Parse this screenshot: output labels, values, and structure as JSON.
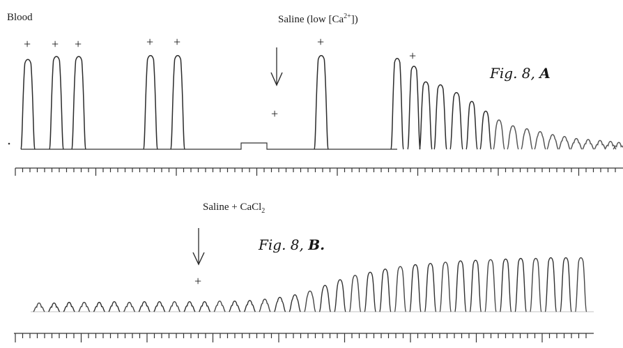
{
  "labels": {
    "blood": "Blood",
    "saline_low_ca_text": "Saline (low [Ca",
    "saline_low_ca_sup": "2+",
    "saline_low_ca_close": "])",
    "saline_cacl2_text": "Saline + CaCl",
    "saline_cacl2_sub": "2"
  },
  "figures": {
    "a_prefix": "Fig. 8, ",
    "a_letter": "A",
    "b_prefix": "Fig. 8, ",
    "b_letter": "B."
  },
  "marks": {
    "plus": "+"
  },
  "traces": {
    "a": {
      "beat_heights": [
        0.92,
        0.95,
        0.95,
        0.96,
        0.96,
        0.05,
        0.96,
        0.93,
        0.85,
        0.69,
        0.66,
        0.58,
        0.49,
        0.39,
        0.3,
        0.24,
        0.21,
        0.18,
        0.15,
        0.13,
        0.11,
        0.1,
        0.09,
        0.08,
        0.07
      ]
    },
    "b": {
      "beat_heights": [
        0.14,
        0.14,
        0.15,
        0.15,
        0.15,
        0.16,
        0.15,
        0.16,
        0.16,
        0.16,
        0.16,
        0.16,
        0.17,
        0.17,
        0.18,
        0.2,
        0.23,
        0.27,
        0.33,
        0.42,
        0.51,
        0.58,
        0.63,
        0.68,
        0.72,
        0.75,
        0.77,
        0.79,
        0.81,
        0.82,
        0.83,
        0.84,
        0.85,
        0.85,
        0.86,
        0.86,
        0.86
      ]
    }
  }
}
